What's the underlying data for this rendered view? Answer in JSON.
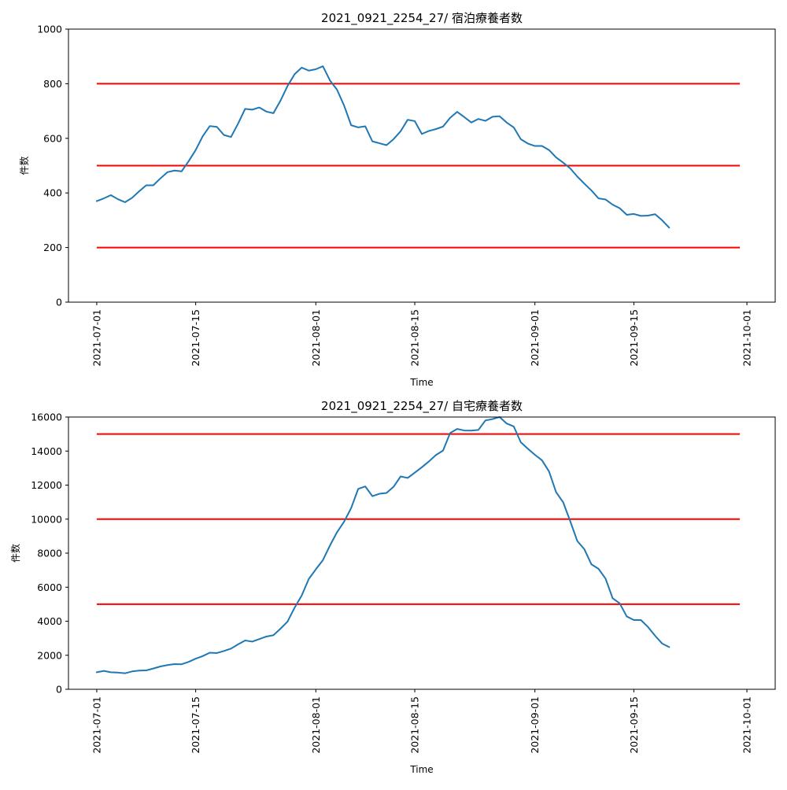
{
  "chart_data": [
    {
      "type": "line",
      "title": "2021_0921_2254_27/ 宿泊療養者数",
      "xlabel": "Time",
      "ylabel": "件数",
      "xlim": [
        "2021-06-27",
        "2021-10-05"
      ],
      "ylim": [
        0,
        1000
      ],
      "x_ticks": [
        "2021-07-01",
        "2021-07-15",
        "2021-08-01",
        "2021-08-15",
        "2021-09-01",
        "2021-09-15",
        "2021-10-01"
      ],
      "y_ticks": [
        0,
        200,
        400,
        600,
        800,
        1000
      ],
      "grid": false,
      "line_color": "#1f77b4",
      "threshold_color": "#ff0000",
      "thresholds": [
        200,
        500,
        800
      ],
      "threshold_x_range": [
        "2021-07-01",
        "2021-09-30"
      ],
      "x": [
        "2021-07-01",
        "2021-07-02",
        "2021-07-03",
        "2021-07-04",
        "2021-07-05",
        "2021-07-06",
        "2021-07-07",
        "2021-07-08",
        "2021-07-09",
        "2021-07-10",
        "2021-07-11",
        "2021-07-12",
        "2021-07-13",
        "2021-07-14",
        "2021-07-15",
        "2021-07-16",
        "2021-07-17",
        "2021-07-18",
        "2021-07-19",
        "2021-07-20",
        "2021-07-21",
        "2021-07-22",
        "2021-07-23",
        "2021-07-24",
        "2021-07-25",
        "2021-07-26",
        "2021-07-27",
        "2021-07-28",
        "2021-07-29",
        "2021-07-30",
        "2021-07-31",
        "2021-08-01",
        "2021-08-02",
        "2021-08-03",
        "2021-08-04",
        "2021-08-05",
        "2021-08-06",
        "2021-08-07",
        "2021-08-08",
        "2021-08-09",
        "2021-08-10",
        "2021-08-11",
        "2021-08-12",
        "2021-08-13",
        "2021-08-14",
        "2021-08-15",
        "2021-08-16",
        "2021-08-17",
        "2021-08-18",
        "2021-08-19",
        "2021-08-20",
        "2021-08-21",
        "2021-08-22",
        "2021-08-23",
        "2021-08-24",
        "2021-08-25",
        "2021-08-26",
        "2021-08-27",
        "2021-08-28",
        "2021-08-29",
        "2021-08-30",
        "2021-08-31",
        "2021-09-01",
        "2021-09-02",
        "2021-09-03",
        "2021-09-04",
        "2021-09-05",
        "2021-09-06",
        "2021-09-07",
        "2021-09-08",
        "2021-09-09",
        "2021-09-10",
        "2021-09-11",
        "2021-09-12",
        "2021-09-13",
        "2021-09-14",
        "2021-09-15",
        "2021-09-16",
        "2021-09-17",
        "2021-09-18",
        "2021-09-19",
        "2021-09-20"
      ],
      "values": [
        370,
        380,
        392,
        377,
        366,
        382,
        406,
        428,
        428,
        453,
        476,
        482,
        479,
        516,
        557,
        608,
        645,
        642,
        612,
        605,
        654,
        708,
        705,
        713,
        698,
        692,
        738,
        792,
        835,
        859,
        848,
        853,
        864,
        812,
        778,
        720,
        648,
        640,
        644,
        589,
        582,
        575,
        597,
        626,
        668,
        663,
        616,
        627,
        634,
        643,
        675,
        697,
        678,
        658,
        671,
        664,
        679,
        681,
        658,
        640,
        597,
        581,
        572,
        572,
        557,
        530,
        511,
        490,
        460,
        434,
        409,
        380,
        376,
        357,
        344,
        320,
        323,
        316,
        317,
        322,
        300,
        273
      ]
    },
    {
      "type": "line",
      "title": "2021_0921_2254_27/ 自宅療養者数",
      "xlabel": "Time",
      "ylabel": "件数",
      "xlim": [
        "2021-06-27",
        "2021-10-05"
      ],
      "ylim": [
        0,
        16000
      ],
      "x_ticks": [
        "2021-07-01",
        "2021-07-15",
        "2021-08-01",
        "2021-08-15",
        "2021-09-01",
        "2021-09-15",
        "2021-10-01"
      ],
      "y_ticks": [
        0,
        2000,
        4000,
        6000,
        8000,
        10000,
        12000,
        14000,
        16000
      ],
      "grid": false,
      "line_color": "#1f77b4",
      "threshold_color": "#ff0000",
      "thresholds": [
        5000,
        10000,
        15000
      ],
      "threshold_x_range": [
        "2021-07-01",
        "2021-09-30"
      ],
      "x": [
        "2021-07-01",
        "2021-07-02",
        "2021-07-03",
        "2021-07-04",
        "2021-07-05",
        "2021-07-06",
        "2021-07-07",
        "2021-07-08",
        "2021-07-09",
        "2021-07-10",
        "2021-07-11",
        "2021-07-12",
        "2021-07-13",
        "2021-07-14",
        "2021-07-15",
        "2021-07-16",
        "2021-07-17",
        "2021-07-18",
        "2021-07-19",
        "2021-07-20",
        "2021-07-21",
        "2021-07-22",
        "2021-07-23",
        "2021-07-24",
        "2021-07-25",
        "2021-07-26",
        "2021-07-27",
        "2021-07-28",
        "2021-07-29",
        "2021-07-30",
        "2021-07-31",
        "2021-08-01",
        "2021-08-02",
        "2021-08-03",
        "2021-08-04",
        "2021-08-05",
        "2021-08-06",
        "2021-08-07",
        "2021-08-08",
        "2021-08-09",
        "2021-08-10",
        "2021-08-11",
        "2021-08-12",
        "2021-08-13",
        "2021-08-14",
        "2021-08-15",
        "2021-08-16",
        "2021-08-17",
        "2021-08-18",
        "2021-08-19",
        "2021-08-20",
        "2021-08-21",
        "2021-08-22",
        "2021-08-23",
        "2021-08-24",
        "2021-08-25",
        "2021-08-26",
        "2021-08-27",
        "2021-08-28",
        "2021-08-29",
        "2021-08-30",
        "2021-08-31",
        "2021-09-01",
        "2021-09-02",
        "2021-09-03",
        "2021-09-04",
        "2021-09-05",
        "2021-09-06",
        "2021-09-07",
        "2021-09-08",
        "2021-09-09",
        "2021-09-10",
        "2021-09-11",
        "2021-09-12",
        "2021-09-13",
        "2021-09-14",
        "2021-09-15",
        "2021-09-16",
        "2021-09-17",
        "2021-09-18",
        "2021-09-19",
        "2021-09-20"
      ],
      "values": [
        1000,
        1080,
        1000,
        980,
        940,
        1050,
        1100,
        1110,
        1220,
        1340,
        1420,
        1480,
        1470,
        1610,
        1800,
        1950,
        2150,
        2130,
        2250,
        2390,
        2640,
        2870,
        2800,
        2950,
        3100,
        3180,
        3560,
        3980,
        4800,
        5510,
        6480,
        7050,
        7590,
        8450,
        9230,
        9850,
        10650,
        11780,
        11920,
        11350,
        11490,
        11540,
        11900,
        12510,
        12420,
        12730,
        13050,
        13390,
        13770,
        14030,
        15060,
        15300,
        15210,
        15200,
        15240,
        15800,
        15880,
        16000,
        15620,
        15450,
        14520,
        14140,
        13780,
        13460,
        12800,
        11580,
        10990,
        9880,
        8710,
        8230,
        7340,
        7080,
        6500,
        5350,
        5050,
        4280,
        4070,
        4070,
        3660,
        3150,
        2690,
        2480
      ]
    }
  ]
}
